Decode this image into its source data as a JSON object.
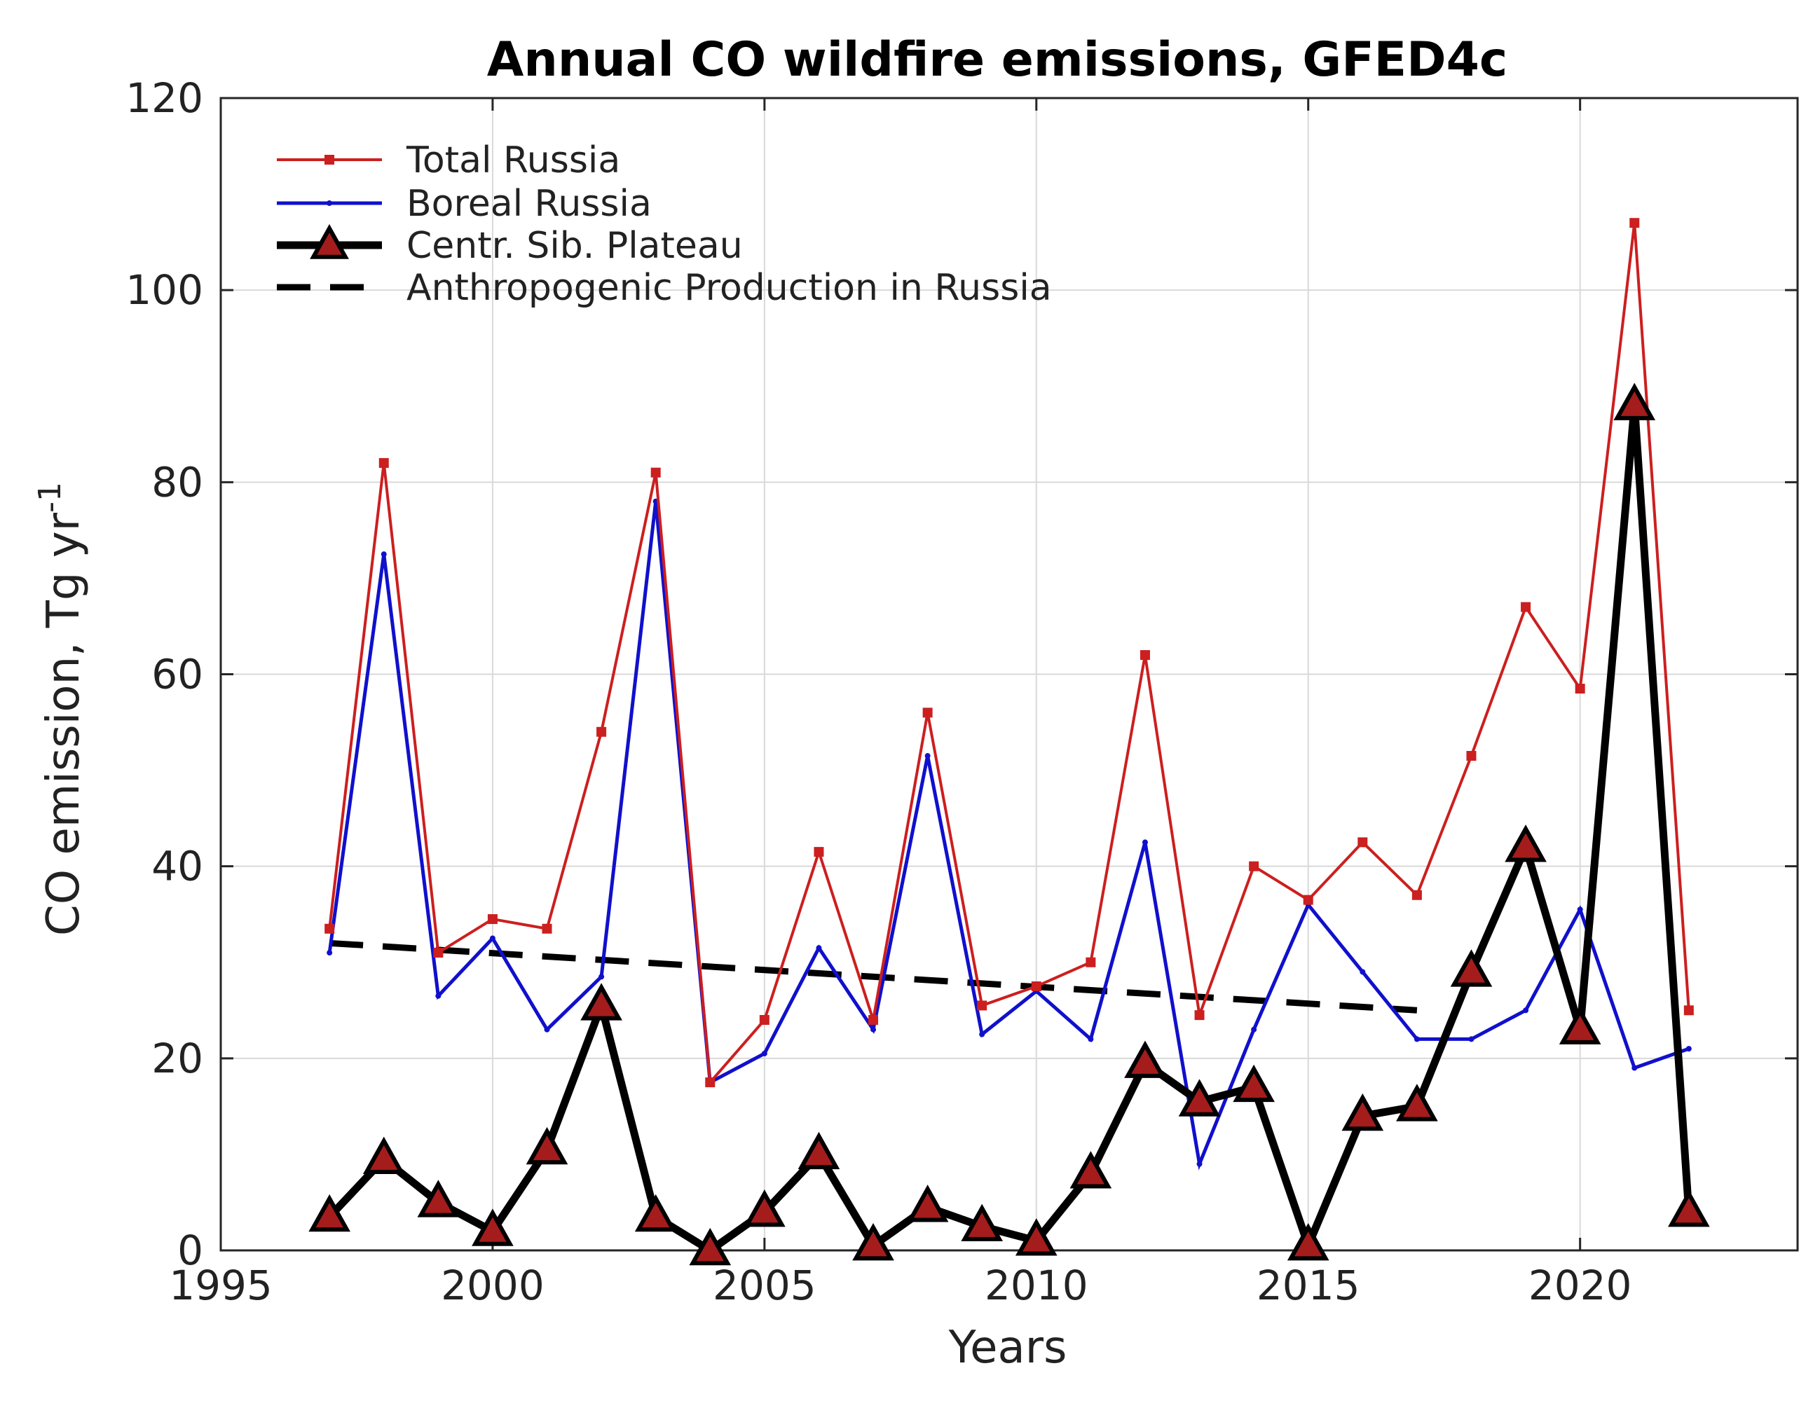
{
  "chart_data": {
    "type": "line",
    "title": "Annual CO wildfire emissions, GFED4c",
    "xlabel": "Years",
    "ylabel": "CO emission, Tg yr",
    "ylabel_superscript": "-1",
    "xlim": [
      1995,
      2024
    ],
    "ylim": [
      0,
      120
    ],
    "xticks": [
      1995,
      2000,
      2005,
      2010,
      2015,
      2020
    ],
    "yticks": [
      0,
      20,
      40,
      60,
      80,
      100,
      120
    ],
    "grid": true,
    "legend_position": "top-left",
    "series": [
      {
        "name": "Total Russia",
        "color": "#cc1f1f",
        "style": "line-square-marker",
        "x": [
          1997,
          1998,
          1999,
          2000,
          2001,
          2002,
          2003,
          2004,
          2005,
          2006,
          2007,
          2008,
          2009,
          2010,
          2011,
          2012,
          2013,
          2014,
          2015,
          2016,
          2017,
          2018,
          2019,
          2020,
          2021,
          2022
        ],
        "values": [
          33.5,
          82,
          31,
          34.5,
          33.5,
          54,
          81,
          17.5,
          24,
          41.5,
          24,
          56,
          25.5,
          27.5,
          30,
          62,
          24.5,
          40,
          36.5,
          42.5,
          37,
          51.5,
          67,
          58.5,
          107,
          25
        ]
      },
      {
        "name": "Boreal Russia",
        "color": "#1010cc",
        "style": "line-dot-marker",
        "x": [
          1997,
          1998,
          1999,
          2000,
          2001,
          2002,
          2003,
          2004,
          2005,
          2006,
          2007,
          2008,
          2009,
          2010,
          2011,
          2012,
          2013,
          2014,
          2015,
          2016,
          2017,
          2018,
          2019,
          2020,
          2021,
          2022
        ],
        "values": [
          31,
          72.5,
          26.5,
          32.5,
          23,
          28.5,
          78,
          17.5,
          20.5,
          31.5,
          23,
          51.5,
          22.5,
          27,
          22,
          42.5,
          9,
          23,
          36,
          29,
          22,
          22,
          25,
          35.5,
          19,
          21
        ]
      },
      {
        "name": "Centr. Sib. Plateau",
        "color": "#000000",
        "marker_color": "#a51c1c",
        "style": "thick-line-triangle-marker",
        "x": [
          1997,
          1998,
          1999,
          2000,
          2001,
          2002,
          2003,
          2004,
          2005,
          2006,
          2007,
          2008,
          2009,
          2010,
          2011,
          2012,
          2013,
          2014,
          2015,
          2016,
          2017,
          2018,
          2019,
          2020,
          2021,
          2022
        ],
        "values": [
          3.5,
          9.5,
          5,
          2,
          10.5,
          25.5,
          3.5,
          0,
          4,
          10,
          0.5,
          4.5,
          2.5,
          1,
          8,
          19.5,
          15.5,
          17,
          0.5,
          14,
          15,
          29,
          42,
          23,
          88,
          4
        ]
      },
      {
        "name": "Anthropogenic Production in Russia",
        "color": "#000000",
        "style": "dashed-line",
        "x": [
          1997,
          2017
        ],
        "values": [
          32,
          25
        ]
      }
    ]
  }
}
